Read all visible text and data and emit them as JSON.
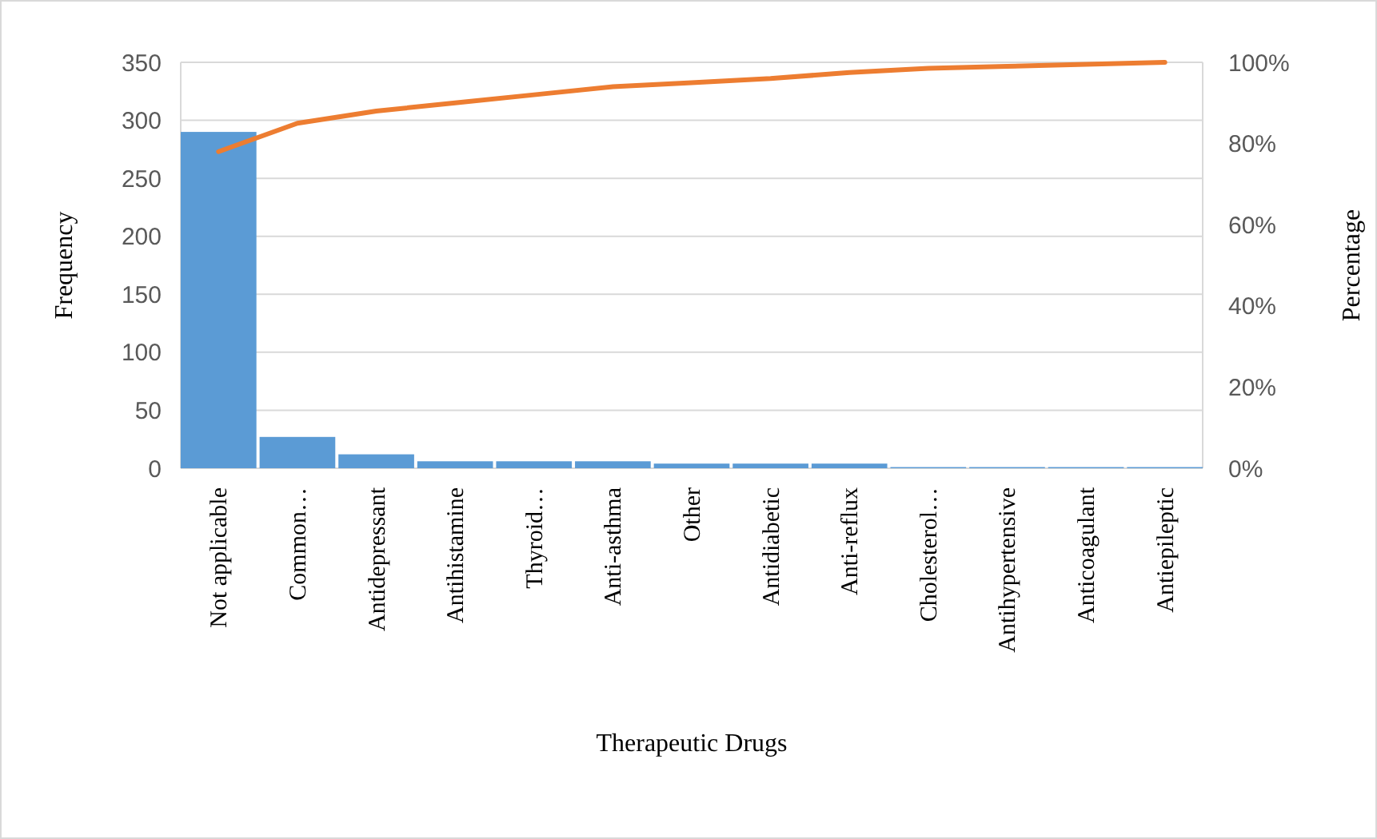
{
  "chart_data": {
    "type": "bar",
    "xlabel": "Therapeutic Drugs",
    "ylabel": "Frequency",
    "y2label": "Percentage",
    "categories": [
      "Not applicable",
      "Common…",
      "Antidepressant",
      "Antihistamine",
      "Thyroid…",
      "Anti-asthma",
      "Other",
      "Antidiabetic",
      "Anti-reflux",
      "Cholesterol…",
      "Antihypertensive",
      "Anticoagulant",
      "Antiepileptic"
    ],
    "series": [
      {
        "color": "#5b9bd5",
        "values": [
          290,
          27,
          12,
          6,
          6,
          6,
          4,
          4,
          4,
          1,
          1,
          1,
          1
        ]
      },
      {
        "type": "line",
        "axis": "y2",
        "color": "#ed7d31",
        "values": [
          78,
          85,
          88,
          90,
          92,
          94,
          95,
          96,
          97.5,
          98.5,
          99,
          99.5,
          100
        ]
      }
    ],
    "ylim": [
      0,
      350
    ],
    "yticks": [
      0,
      50,
      100,
      150,
      200,
      250,
      300,
      350
    ],
    "y2lim": [
      0,
      100
    ],
    "y2ticks": [
      {
        "value": 0,
        "label": "0%"
      },
      {
        "value": 20,
        "label": "20%"
      },
      {
        "value": 40,
        "label": "40%"
      },
      {
        "value": 60,
        "label": "60%"
      },
      {
        "value": 80,
        "label": "80%"
      },
      {
        "value": 100,
        "label": "100%"
      }
    ],
    "grid": true
  }
}
